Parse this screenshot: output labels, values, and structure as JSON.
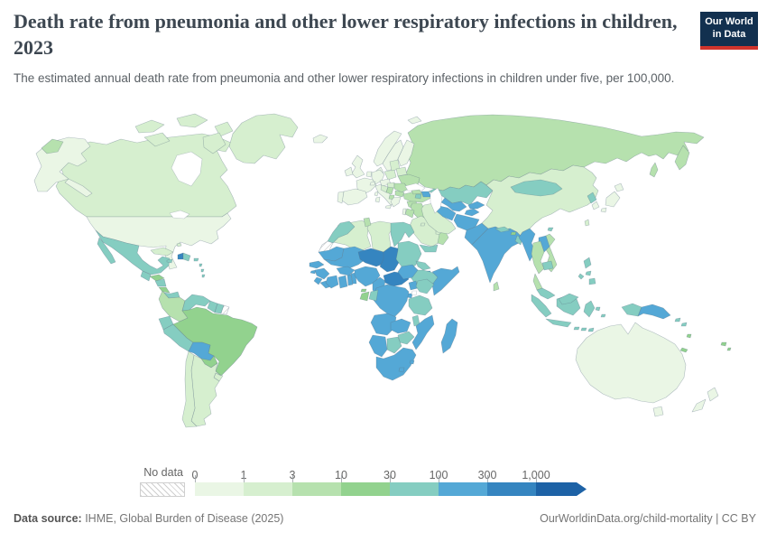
{
  "header": {
    "title": "Death rate from pneumonia and other lower respiratory infections in children, 2023",
    "subtitle": "The estimated annual death rate from pneumonia and other lower respiratory infections in children under five, per 100,000.",
    "logo": {
      "line1": "Our World",
      "line2": "in Data",
      "bg_color": "#12304f",
      "accent_color": "#d0342c"
    }
  },
  "legend": {
    "no_data_label": "No data",
    "tick_labels": [
      "0",
      "1",
      "3",
      "10",
      "30",
      "100",
      "300",
      "1,000"
    ]
  },
  "footer": {
    "source_label": "Data source:",
    "source_value": " IHME, Global Burden of Disease (2025)",
    "credit": "OurWorldinData.org/child-mortality | CC BY"
  },
  "chart_data": {
    "type": "choropleth_map",
    "title": "Death rate from pneumonia and other lower respiratory infections in children, 2023",
    "unit": "deaths per 100,000 children under five",
    "scale": "log-binned",
    "legend_position": "bottom",
    "bins": [
      {
        "range": "0–1",
        "color": "#eaf6e5"
      },
      {
        "range": "1–3",
        "color": "#d6efcf"
      },
      {
        "range": "3–10",
        "color": "#b6e1ae"
      },
      {
        "range": "10–30",
        "color": "#92d28e"
      },
      {
        "range": "30–100",
        "color": "#85cdc1"
      },
      {
        "range": "100–300",
        "color": "#54a8d6"
      },
      {
        "range": "300–1,000",
        "color": "#3585c0"
      },
      {
        "range": "1,000+",
        "color": "#1d62a6"
      }
    ],
    "no_data": {
      "label": "No data",
      "style": "hatched",
      "bin": -1
    },
    "countries": {
      "united-states": 0,
      "japan": 0,
      "south-korea": 0,
      "australia": 0,
      "new-zealand": 0,
      "united-kingdom": 0,
      "ireland": 0,
      "france": 0,
      "germany": 0,
      "netherlands": 0,
      "spain": 0,
      "portugal": 0,
      "italy": 0,
      "norway": 0,
      "sweden": 0,
      "finland": 0,
      "denmark": 0,
      "iceland": 0,
      "greece": 0,
      "austria": 0,
      "switzerland": 0,
      "israel": 0,
      "canada": 1,
      "greenland": 1,
      "cuba": 1,
      "bahamas": 1,
      "chile": 1,
      "argentina": 1,
      "uruguay": 1,
      "poland": 1,
      "baltic-states": 1,
      "belarus": 1,
      "hungary": 1,
      "croatia": 1,
      "saudi-arabia": 1,
      "iran": 1,
      "united-arab-emirates": 1,
      "kuwait": 1,
      "china": 1,
      "taiwan": 1,
      "algeria": 1,
      "libya": 1,
      "cyprus": 1,
      "russia": 2,
      "ukraine": 2,
      "romania": 2,
      "bulgaria": 2,
      "serbia": 2,
      "albania": 2,
      "turkey": 2,
      "syria": 2,
      "jordan": 2,
      "iraq": 2,
      "tunisia": 2,
      "colombia": 2,
      "sri-lanka": 2,
      "thailand": 2,
      "vietnam": 2,
      "oman": 2,
      "georgia": 2,
      "brazil": 3,
      "paraguay": 3,
      "honduras": 3,
      "costa-rica": 3,
      "gabon": 3,
      "equatorial-guinea": 3,
      "fiji": 3,
      "bhutan": 3,
      "vanuatu": 3,
      "new-caledonia": 3,
      "mexico": 4,
      "guatemala": 4,
      "nicaragua": 4,
      "panama": 4,
      "jamaica": 4,
      "dominican-republic": 4,
      "lesser-antilles": 4,
      "venezuela": 4,
      "guyana": 4,
      "suriname": 4,
      "ecuador": 4,
      "peru": 4,
      "morocco": 4,
      "egypt": 4,
      "sudan": 4,
      "eritrea": 4,
      "ethiopia": 4,
      "kenya": 4,
      "tanzania": 4,
      "malawi": 4,
      "zimbabwe": 4,
      "botswana": 4,
      "congo": 4,
      "yemen": 4,
      "kazakhstan": 4,
      "nepal": 4,
      "bangladesh": 4,
      "mongolia": 4,
      "north-korea": 4,
      "cambodia": 4,
      "malaysia": 4,
      "indonesia": 4,
      "philippines": 4,
      "armenia": 4,
      "solomon-islands": 4,
      "timor-leste": 4,
      "hainan": 4,
      "bolivia": 5,
      "mauritania": 5,
      "mali": 5,
      "senegal": 5,
      "guinea": 5,
      "guinea-bissau": 5,
      "sierra-leone": 5,
      "liberia": 5,
      "cote-divoire": 5,
      "ghana": 5,
      "togo": 5,
      "benin": 5,
      "burkina-faso": 5,
      "nigeria": 5,
      "cameroon": 5,
      "south-sudan": 5,
      "somalia": 5,
      "djibouti": 5,
      "uganda": 5,
      "rwanda": 5,
      "democratic-republic-of-congo": 5,
      "angola": 5,
      "zambia": 5,
      "mozambique": 5,
      "namibia": 5,
      "south-africa": 5,
      "lesotho": 5,
      "eswatini": 5,
      "madagascar": 5,
      "uzbekistan": 5,
      "turkmenistan": 5,
      "kyrgyzstan": 5,
      "tajikistan": 5,
      "afghanistan": 5,
      "pakistan": 5,
      "india": 5,
      "myanmar": 5,
      "laos": 5,
      "papua-new-guinea": 5,
      "azerbaijan": 5,
      "niger": 6,
      "chad": 6,
      "central-african-republic": 6,
      "haiti": 6,
      "western-sahara": -1,
      "french-guiana": -1
    }
  }
}
